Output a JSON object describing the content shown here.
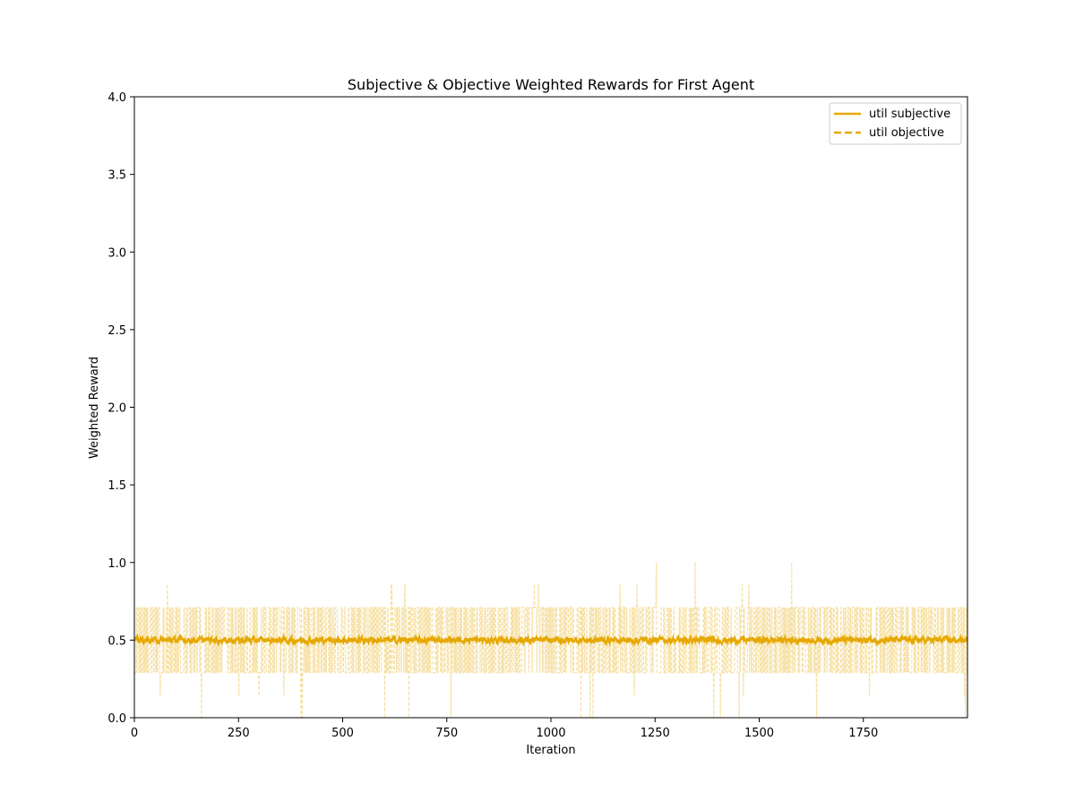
{
  "chart_data": {
    "type": "line",
    "title": "Subjective & Objective Weighted Rewards for First Agent",
    "xlabel": "Iteration",
    "ylabel": "Weighted Reward",
    "xlim": [
      0,
      2000
    ],
    "ylim": [
      0,
      4
    ],
    "x_ticks": [
      0,
      250,
      500,
      750,
      1000,
      1250,
      1500,
      1750
    ],
    "y_ticks": [
      0.0,
      0.5,
      1.0,
      1.5,
      2.0,
      2.5,
      3.0,
      3.5,
      4.0
    ],
    "x_tick_labels": [
      "0",
      "250",
      "500",
      "750",
      "1000",
      "1250",
      "1500",
      "1750"
    ],
    "y_tick_labels": [
      "0.0",
      "0.5",
      "1.0",
      "1.5",
      "2.0",
      "2.5",
      "3.0",
      "3.5",
      "4.0"
    ],
    "legend_position": "top-right",
    "grid": false,
    "series": [
      {
        "name": "util subjective",
        "style": "solid",
        "color": "#E6A800",
        "x_start": 0,
        "x_end": 2000,
        "mean": 0.5,
        "noise_amplitude": 0.03,
        "description": "smoothed reward fluctuating tightly around 0.5"
      },
      {
        "name": "util objective",
        "style": "dashed",
        "color": "#E6A800",
        "opacity": 0.35,
        "x_start": 0,
        "x_end": 2000,
        "mean": 0.5,
        "typical_range": [
          0.29,
          0.71
        ],
        "spike_values": [
          0.0,
          0.14,
          0.86,
          1.0
        ],
        "description": "per-iteration reward oscillating between about 0.29 and 0.71 with occasional excursions to 0.0-1.0"
      }
    ]
  }
}
